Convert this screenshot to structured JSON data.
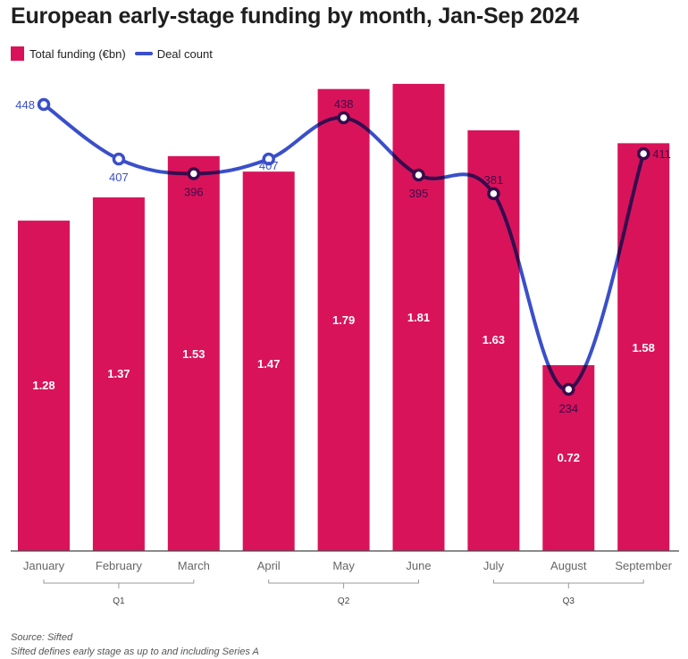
{
  "title": "European early-stage funding by month, Jan-Sep 2024",
  "legend": {
    "bars": "Total funding (€bn)",
    "line": "Deal count"
  },
  "footer": {
    "source": "Source: Sifted",
    "note": "Sifted defines early stage as up to and including Series A"
  },
  "colors": {
    "bar": "#d9135a",
    "line": "#3a4fc9",
    "line_overlap": "#3a0a4a"
  },
  "chart_data": {
    "type": "bar",
    "title": "European early-stage funding by month, Jan-Sep 2024",
    "categories": [
      "January",
      "February",
      "March",
      "April",
      "May",
      "June",
      "July",
      "August",
      "September"
    ],
    "series": [
      {
        "name": "Total funding (€bn)",
        "type": "bar",
        "values": [
          1.28,
          1.37,
          1.53,
          1.47,
          1.79,
          1.81,
          1.63,
          0.72,
          1.58
        ]
      },
      {
        "name": "Deal count",
        "type": "line",
        "values": [
          448,
          407,
          396,
          407,
          438,
          395,
          381,
          234,
          411
        ]
      }
    ],
    "groups": [
      {
        "label": "Q1",
        "from": 0,
        "to": 2
      },
      {
        "label": "Q2",
        "from": 3,
        "to": 5
      },
      {
        "label": "Q3",
        "from": 6,
        "to": 8
      }
    ],
    "xlabel": "",
    "ylabel": "",
    "legend": "top-left",
    "grid": false
  }
}
